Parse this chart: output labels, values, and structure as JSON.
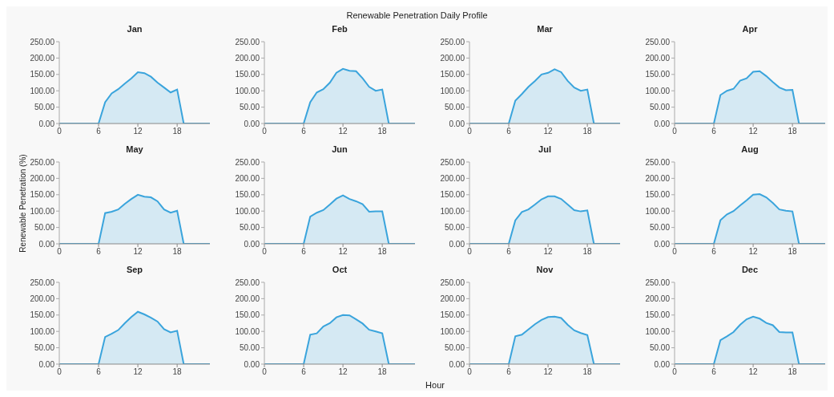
{
  "chart_data": [
    {
      "type": "area",
      "title": "Jan",
      "annotations": [
        "Renewable Penetration Daily Profile"
      ],
      "x": [
        0,
        1,
        2,
        3,
        4,
        5,
        6,
        7,
        8,
        9,
        10,
        11,
        12,
        13,
        14,
        15,
        16,
        17,
        18,
        19,
        20,
        21,
        22,
        23
      ],
      "values": [
        0,
        0,
        0,
        0,
        0,
        0,
        0,
        65,
        92,
        105,
        122,
        138,
        157,
        154,
        143,
        125,
        110,
        95,
        104,
        0,
        0,
        0,
        0,
        0
      ],
      "color": "#3aa4dc",
      "xlim": [
        0,
        23
      ],
      "xticks": [
        0,
        6,
        12,
        18
      ],
      "ylim": [
        0,
        250
      ],
      "yticks": [
        {
          "value": 0,
          "label": "0.00"
        },
        {
          "value": 50,
          "label": "50.00"
        },
        {
          "value": 100,
          "label": "100.00"
        },
        {
          "value": 150,
          "label": "150.00"
        },
        {
          "value": 200,
          "label": "200.00"
        },
        {
          "value": 250,
          "label": "250.00"
        }
      ]
    },
    {
      "type": "area",
      "title": "Feb",
      "x": [
        0,
        1,
        2,
        3,
        4,
        5,
        6,
        7,
        8,
        9,
        10,
        11,
        12,
        13,
        14,
        15,
        16,
        17,
        18,
        19,
        20,
        21,
        22,
        23
      ],
      "values": [
        0,
        0,
        0,
        0,
        0,
        0,
        0,
        65,
        95,
        105,
        125,
        155,
        167,
        161,
        160,
        138,
        112,
        100,
        104,
        0,
        0,
        0,
        0,
        0
      ],
      "color": "#3aa4dc",
      "xlim": [
        0,
        23
      ],
      "xticks": [
        0,
        6,
        12,
        18
      ],
      "ylim": [
        0,
        250
      ],
      "yticks": [
        {
          "value": 0,
          "label": "0.00"
        },
        {
          "value": 50,
          "label": "50.00"
        },
        {
          "value": 100,
          "label": "100.00"
        },
        {
          "value": 150,
          "label": "150.00"
        },
        {
          "value": 200,
          "label": "200.00"
        },
        {
          "value": 250,
          "label": "250.00"
        }
      ]
    },
    {
      "type": "area",
      "title": "Mar",
      "x": [
        0,
        1,
        2,
        3,
        4,
        5,
        6,
        7,
        8,
        9,
        10,
        11,
        12,
        13,
        14,
        15,
        16,
        17,
        18,
        19,
        20,
        21,
        22,
        23
      ],
      "values": [
        0,
        0,
        0,
        0,
        0,
        0,
        0,
        70,
        90,
        112,
        130,
        150,
        155,
        166,
        157,
        130,
        110,
        100,
        104,
        0,
        0,
        0,
        0,
        0
      ],
      "color": "#3aa4dc",
      "xlim": [
        0,
        23
      ],
      "xticks": [
        0,
        6,
        12,
        18
      ],
      "ylim": [
        0,
        250
      ],
      "yticks": [
        {
          "value": 0,
          "label": "0.00"
        },
        {
          "value": 50,
          "label": "50.00"
        },
        {
          "value": 100,
          "label": "100.00"
        },
        {
          "value": 150,
          "label": "150.00"
        },
        {
          "value": 200,
          "label": "200.00"
        },
        {
          "value": 250,
          "label": "250.00"
        }
      ]
    },
    {
      "type": "area",
      "title": "Apr",
      "x": [
        0,
        1,
        2,
        3,
        4,
        5,
        6,
        7,
        8,
        9,
        10,
        11,
        12,
        13,
        14,
        15,
        16,
        17,
        18,
        19,
        20,
        21,
        22,
        23
      ],
      "values": [
        0,
        0,
        0,
        0,
        0,
        0,
        0,
        87,
        100,
        106,
        131,
        138,
        158,
        160,
        145,
        127,
        110,
        102,
        103,
        0,
        0,
        0,
        0,
        0
      ],
      "color": "#3aa4dc",
      "xlim": [
        0,
        23
      ],
      "xticks": [
        0,
        6,
        12,
        18
      ],
      "ylim": [
        0,
        250
      ],
      "yticks": [
        {
          "value": 0,
          "label": "0.00"
        },
        {
          "value": 50,
          "label": "50.00"
        },
        {
          "value": 100,
          "label": "100.00"
        },
        {
          "value": 150,
          "label": "150.00"
        },
        {
          "value": 200,
          "label": "200.00"
        },
        {
          "value": 250,
          "label": "250.00"
        }
      ]
    },
    {
      "type": "area",
      "title": "May",
      "ylabel": "Renewable Penetration (%)",
      "x": [
        0,
        1,
        2,
        3,
        4,
        5,
        6,
        7,
        8,
        9,
        10,
        11,
        12,
        13,
        14,
        15,
        16,
        17,
        18,
        19,
        20,
        21,
        22,
        23
      ],
      "values": [
        0,
        0,
        0,
        0,
        0,
        0,
        0,
        94,
        98,
        105,
        122,
        137,
        150,
        144,
        142,
        130,
        105,
        95,
        101,
        0,
        0,
        0,
        0,
        0
      ],
      "color": "#3aa4dc",
      "xlim": [
        0,
        23
      ],
      "xticks": [
        0,
        6,
        12,
        18
      ],
      "ylim": [
        0,
        250
      ],
      "yticks": [
        {
          "value": 0,
          "label": "0.00"
        },
        {
          "value": 50,
          "label": "50.00"
        },
        {
          "value": 100,
          "label": "100.00"
        },
        {
          "value": 150,
          "label": "150.00"
        },
        {
          "value": 200,
          "label": "200.00"
        },
        {
          "value": 250,
          "label": "250.00"
        }
      ]
    },
    {
      "type": "area",
      "title": "Jun",
      "x": [
        0,
        1,
        2,
        3,
        4,
        5,
        6,
        7,
        8,
        9,
        10,
        11,
        12,
        13,
        14,
        15,
        16,
        17,
        18,
        19,
        20,
        21,
        22,
        23
      ],
      "values": [
        0,
        0,
        0,
        0,
        0,
        0,
        0,
        83,
        95,
        103,
        120,
        138,
        148,
        137,
        130,
        121,
        98,
        99,
        99,
        0,
        0,
        0,
        0,
        0
      ],
      "color": "#3aa4dc",
      "xlim": [
        0,
        23
      ],
      "xticks": [
        0,
        6,
        12,
        18
      ],
      "ylim": [
        0,
        250
      ],
      "yticks": [
        {
          "value": 0,
          "label": "0.00"
        },
        {
          "value": 50,
          "label": "50.00"
        },
        {
          "value": 100,
          "label": "100.00"
        },
        {
          "value": 150,
          "label": "150.00"
        },
        {
          "value": 200,
          "label": "200.00"
        },
        {
          "value": 250,
          "label": "250.00"
        }
      ]
    },
    {
      "type": "area",
      "title": "Jul",
      "x": [
        0,
        1,
        2,
        3,
        4,
        5,
        6,
        7,
        8,
        9,
        10,
        11,
        12,
        13,
        14,
        15,
        16,
        17,
        18,
        19,
        20,
        21,
        22,
        23
      ],
      "values": [
        0,
        0,
        0,
        0,
        0,
        0,
        0,
        72,
        97,
        105,
        120,
        136,
        145,
        145,
        137,
        120,
        103,
        99,
        102,
        0,
        0,
        0,
        0,
        0
      ],
      "color": "#3aa4dc",
      "xlim": [
        0,
        23
      ],
      "xticks": [
        0,
        6,
        12,
        18
      ],
      "ylim": [
        0,
        250
      ],
      "yticks": [
        {
          "value": 0,
          "label": "0.00"
        },
        {
          "value": 50,
          "label": "50.00"
        },
        {
          "value": 100,
          "label": "100.00"
        },
        {
          "value": 150,
          "label": "150.00"
        },
        {
          "value": 200,
          "label": "200.00"
        },
        {
          "value": 250,
          "label": "250.00"
        }
      ]
    },
    {
      "type": "area",
      "title": "Aug",
      "x": [
        0,
        1,
        2,
        3,
        4,
        5,
        6,
        7,
        8,
        9,
        10,
        11,
        12,
        13,
        14,
        15,
        16,
        17,
        18,
        19,
        20,
        21,
        22,
        23
      ],
      "values": [
        0,
        0,
        0,
        0,
        0,
        0,
        0,
        72,
        90,
        100,
        117,
        133,
        150,
        152,
        142,
        125,
        105,
        101,
        99,
        0,
        0,
        0,
        0,
        0
      ],
      "color": "#3aa4dc",
      "xlim": [
        0,
        23
      ],
      "xticks": [
        0,
        6,
        12,
        18
      ],
      "ylim": [
        0,
        250
      ],
      "yticks": [
        {
          "value": 0,
          "label": "0.00"
        },
        {
          "value": 50,
          "label": "50.00"
        },
        {
          "value": 100,
          "label": "100.00"
        },
        {
          "value": 150,
          "label": "150.00"
        },
        {
          "value": 200,
          "label": "200.00"
        },
        {
          "value": 250,
          "label": "250.00"
        }
      ]
    },
    {
      "type": "area",
      "title": "Sep",
      "x": [
        0,
        1,
        2,
        3,
        4,
        5,
        6,
        7,
        8,
        9,
        10,
        11,
        12,
        13,
        14,
        15,
        16,
        17,
        18,
        19,
        20,
        21,
        22,
        23
      ],
      "values": [
        0,
        0,
        0,
        0,
        0,
        0,
        0,
        83,
        93,
        104,
        125,
        144,
        160,
        152,
        142,
        130,
        107,
        97,
        102,
        0,
        0,
        0,
        0,
        0
      ],
      "color": "#3aa4dc",
      "xlim": [
        0,
        23
      ],
      "xticks": [
        0,
        6,
        12,
        18
      ],
      "ylim": [
        0,
        250
      ],
      "yticks": [
        {
          "value": 0,
          "label": "0.00"
        },
        {
          "value": 50,
          "label": "50.00"
        },
        {
          "value": 100,
          "label": "100.00"
        },
        {
          "value": 150,
          "label": "150.00"
        },
        {
          "value": 200,
          "label": "200.00"
        },
        {
          "value": 250,
          "label": "250.00"
        }
      ]
    },
    {
      "type": "area",
      "title": "Oct",
      "xlabel": "Hour",
      "x": [
        0,
        1,
        2,
        3,
        4,
        5,
        6,
        7,
        8,
        9,
        10,
        11,
        12,
        13,
        14,
        15,
        16,
        17,
        18,
        19,
        20,
        21,
        22,
        23
      ],
      "values": [
        0,
        0,
        0,
        0,
        0,
        0,
        0,
        90,
        94,
        115,
        125,
        143,
        150,
        149,
        137,
        124,
        105,
        100,
        94,
        0,
        0,
        0,
        0,
        0
      ],
      "color": "#3aa4dc",
      "xlim": [
        0,
        23
      ],
      "xticks": [
        0,
        6,
        12,
        18
      ],
      "ylim": [
        0,
        250
      ],
      "yticks": [
        {
          "value": 0,
          "label": "0.00"
        },
        {
          "value": 50,
          "label": "50.00"
        },
        {
          "value": 100,
          "label": "100.00"
        },
        {
          "value": 150,
          "label": "150.00"
        },
        {
          "value": 200,
          "label": "200.00"
        },
        {
          "value": 250,
          "label": "250.00"
        }
      ]
    },
    {
      "type": "area",
      "title": "Nov",
      "x": [
        0,
        1,
        2,
        3,
        4,
        5,
        6,
        7,
        8,
        9,
        10,
        11,
        12,
        13,
        14,
        15,
        16,
        17,
        18,
        19,
        20,
        21,
        22,
        23
      ],
      "values": [
        0,
        0,
        0,
        0,
        0,
        0,
        0,
        85,
        90,
        106,
        122,
        135,
        144,
        145,
        141,
        120,
        103,
        95,
        89,
        0,
        0,
        0,
        0,
        0
      ],
      "color": "#3aa4dc",
      "xlim": [
        0,
        23
      ],
      "xticks": [
        0,
        6,
        12,
        18
      ],
      "ylim": [
        0,
        250
      ],
      "yticks": [
        {
          "value": 0,
          "label": "0.00"
        },
        {
          "value": 50,
          "label": "50.00"
        },
        {
          "value": 100,
          "label": "100.00"
        },
        {
          "value": 150,
          "label": "150.00"
        },
        {
          "value": 200,
          "label": "200.00"
        },
        {
          "value": 250,
          "label": "250.00"
        }
      ]
    },
    {
      "type": "area",
      "title": "Dec",
      "x": [
        0,
        1,
        2,
        3,
        4,
        5,
        6,
        7,
        8,
        9,
        10,
        11,
        12,
        13,
        14,
        15,
        16,
        17,
        18,
        19,
        20,
        21,
        22,
        23
      ],
      "values": [
        0,
        0,
        0,
        0,
        0,
        0,
        0,
        73,
        85,
        98,
        120,
        137,
        145,
        139,
        126,
        119,
        98,
        97,
        97,
        0,
        0,
        0,
        0,
        0
      ],
      "color": "#3aa4dc",
      "xlim": [
        0,
        23
      ],
      "xticks": [
        0,
        6,
        12,
        18
      ],
      "ylim": [
        0,
        250
      ],
      "yticks": [
        {
          "value": 0,
          "label": "0.00"
        },
        {
          "value": 50,
          "label": "50.00"
        },
        {
          "value": 100,
          "label": "100.00"
        },
        {
          "value": 150,
          "label": "150.00"
        },
        {
          "value": 200,
          "label": "200.00"
        },
        {
          "value": 250,
          "label": "250.00"
        }
      ]
    }
  ]
}
